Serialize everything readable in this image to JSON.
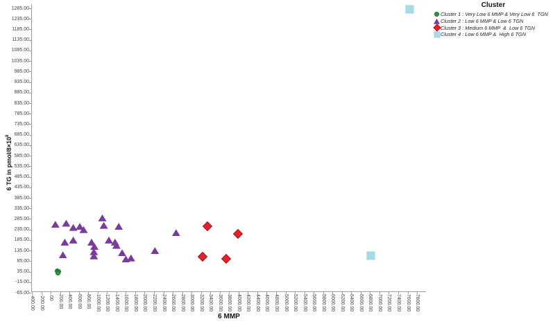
{
  "chart_data": {
    "type": "scatter",
    "title": "",
    "xlabel": "6 MMP",
    "ylabel_base": "6 TG in pmol/8×10",
    "ylabel_exponent": "8",
    "xlim": [
      -400,
      7800
    ],
    "ylim": [
      -65,
      1285
    ],
    "x_tick_step": 200,
    "y_tick_step": 50,
    "grid": "off",
    "legend_position": "top-right",
    "legend_title": "Cluster",
    "x_ticks": [
      "-400.00",
      "-200.00",
      ".00",
      "200.00",
      "400.00",
      "600.00",
      "800.00",
      "1000.00",
      "1200.00",
      "1400.00",
      "1600.00",
      "1800.00",
      "2000.00",
      "2200.00",
      "2400.00",
      "2600.00",
      "2800.00",
      "3000.00",
      "3200.00",
      "3400.00",
      "3600.00",
      "3800.00",
      "4000.00",
      "4200.00",
      "4400.00",
      "4600.00",
      "4800.00",
      "5000.00",
      "5200.00",
      "5400.00",
      "5600.00",
      "5800.00",
      "6000.00",
      "6200.00",
      "6400.00",
      "6600.00",
      "6800.00",
      "7000.00",
      "7200.00",
      "7400.00",
      "7600.00",
      "7800.00"
    ],
    "y_ticks": [
      "1285.00",
      "1235.00",
      "1185.00",
      "1135.00",
      "1085.00",
      "1035.00",
      "985.00",
      "935.00",
      "885.00",
      "835.00",
      "785.00",
      "735.00",
      "685.00",
      "635.00",
      "585.00",
      "535.00",
      "485.00",
      "435.00",
      "385.00",
      "335.00",
      "285.00",
      "235.00",
      "185.00",
      "135.00",
      "85.00",
      "35.00",
      "-15.00",
      "-65.00"
    ],
    "series": [
      {
        "name": "Cluster 1 : Very Low 6 MMP & Very Low 6  TGN",
        "marker": "circle",
        "color": "#2d9a3f",
        "edge": "#1c6e2a",
        "points": [
          [
            140,
            40
          ],
          [
            175,
            34
          ],
          [
            155,
            28
          ]
        ]
      },
      {
        "name": "Cluster 2 : Low 6 MMP & Low 6 TGN",
        "marker": "triangle",
        "color": "#7a3b9c",
        "edge": "#62307d",
        "points": [
          [
            100,
            260
          ],
          [
            330,
            265
          ],
          [
            480,
            245
          ],
          [
            620,
            250
          ],
          [
            700,
            235
          ],
          [
            1100,
            290
          ],
          [
            1130,
            255
          ],
          [
            1450,
            250
          ],
          [
            300,
            175
          ],
          [
            480,
            185
          ],
          [
            870,
            175
          ],
          [
            930,
            155
          ],
          [
            1240,
            185
          ],
          [
            1370,
            175
          ],
          [
            1400,
            160
          ],
          [
            260,
            115
          ],
          [
            920,
            130
          ],
          [
            920,
            110
          ],
          [
            1520,
            125
          ],
          [
            1600,
            95
          ],
          [
            1710,
            100
          ],
          [
            2220,
            135
          ],
          [
            2670,
            220
          ]
        ]
      },
      {
        "name": "Cluster 3 : Medium 6 MMP  &  Low 6 TGN",
        "marker": "diamond",
        "color": "#e62129",
        "edge": "#a3141a",
        "points": [
          [
            3340,
            250
          ],
          [
            3990,
            215
          ],
          [
            3240,
            105
          ],
          [
            3740,
            95
          ]
        ]
      },
      {
        "name": "Cluster 4 : Low 6 MMP &  High 6 TGN",
        "marker": "square",
        "color": "#a7d9e8",
        "edge": "#c9e9f2",
        "points": [
          [
            6820,
            110
          ],
          [
            7650,
            1280
          ]
        ]
      }
    ]
  }
}
